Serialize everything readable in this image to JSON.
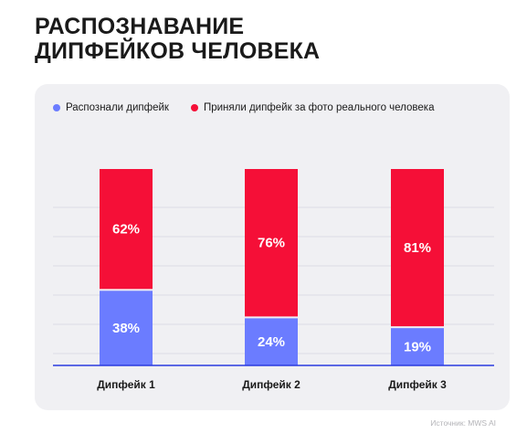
{
  "header": {
    "title_line1": "РАСПОЗНАВАНИЕ",
    "title_line2": "ДИПФЕЙКОВ ЧЕЛОВЕКА"
  },
  "source": "Источник: MWS AI",
  "colors": {
    "recognized": "#6b7cff",
    "accepted": "#f50f37",
    "card": "#f0f0f3",
    "axis": "#2a3adf"
  },
  "chart_data": {
    "type": "bar",
    "stacked": true,
    "categories": [
      "Дипфейк 1",
      "Дипфейк 2",
      "Дипфейк 3"
    ],
    "series": [
      {
        "name": "Распознали дипфейк",
        "values": [
          38,
          24,
          19
        ],
        "labels": [
          "38%",
          "24%",
          "19%"
        ]
      },
      {
        "name": "Приняли дипфейк за фото реального человека",
        "values": [
          62,
          76,
          81
        ],
        "labels": [
          "62%",
          "76%",
          "81%"
        ]
      }
    ],
    "unit": "%",
    "ylim": [
      0,
      100
    ],
    "grid": true,
    "legend": "top-left"
  }
}
